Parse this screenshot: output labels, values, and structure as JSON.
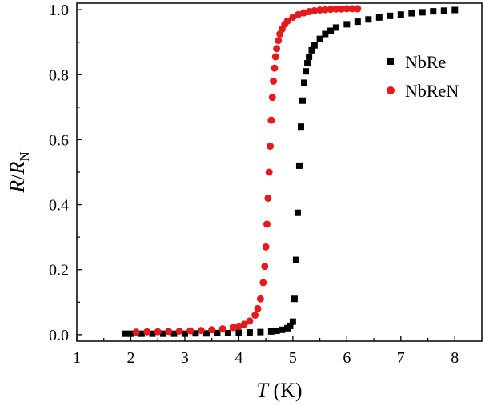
{
  "chart_data": {
    "type": "scatter",
    "xlabel": {
      "var": "T",
      "unit": " (K)"
    },
    "ylabel": {
      "var1": "R",
      "sep": "/",
      "var2": "R",
      "sub": "N"
    },
    "xlim": [
      1,
      8.5
    ],
    "ylim": [
      -0.02,
      1.02
    ],
    "xticks": [
      1,
      2,
      3,
      4,
      5,
      6,
      7,
      8
    ],
    "xtick_labels": [
      "1",
      "2",
      "3",
      "4",
      "5",
      "6",
      "7",
      "8"
    ],
    "yticks": [
      0.0,
      0.2,
      0.4,
      0.6,
      0.8,
      1.0
    ],
    "ytick_labels": [
      "0.0",
      "0.2",
      "0.4",
      "0.6",
      "0.8",
      "1.0"
    ],
    "grid": false,
    "legend_position": "top-right",
    "series": [
      {
        "name": "NbRe",
        "marker": "square",
        "color": "#000000",
        "x": [
          1.9,
          2.0,
          2.2,
          2.4,
          2.6,
          2.8,
          3.0,
          3.2,
          3.4,
          3.6,
          3.8,
          4.0,
          4.2,
          4.4,
          4.6,
          4.7,
          4.8,
          4.9,
          4.95,
          5.0,
          5.03,
          5.06,
          5.09,
          5.12,
          5.15,
          5.18,
          5.21,
          5.24,
          5.27,
          5.3,
          5.35,
          5.4,
          5.5,
          5.6,
          5.7,
          5.8,
          6.0,
          6.2,
          6.4,
          6.6,
          6.8,
          7.0,
          7.2,
          7.4,
          7.6,
          7.8,
          8.0
        ],
        "y": [
          0.003,
          0.003,
          0.003,
          0.003,
          0.003,
          0.003,
          0.003,
          0.004,
          0.004,
          0.005,
          0.005,
          0.006,
          0.007,
          0.008,
          0.01,
          0.012,
          0.015,
          0.02,
          0.027,
          0.04,
          0.11,
          0.23,
          0.375,
          0.52,
          0.64,
          0.72,
          0.775,
          0.81,
          0.835,
          0.855,
          0.875,
          0.89,
          0.91,
          0.925,
          0.935,
          0.945,
          0.955,
          0.963,
          0.97,
          0.976,
          0.981,
          0.985,
          0.989,
          0.992,
          0.995,
          0.997,
          0.999
        ]
      },
      {
        "name": "NbReN",
        "marker": "circle",
        "color": "#e41a1c",
        "x": [
          2.1,
          2.3,
          2.5,
          2.7,
          2.9,
          3.1,
          3.3,
          3.5,
          3.7,
          3.9,
          4.0,
          4.1,
          4.2,
          4.3,
          4.35,
          4.4,
          4.45,
          4.48,
          4.5,
          4.52,
          4.54,
          4.56,
          4.58,
          4.6,
          4.62,
          4.64,
          4.66,
          4.68,
          4.7,
          4.73,
          4.76,
          4.8,
          4.85,
          4.9,
          5.0,
          5.1,
          5.2,
          5.3,
          5.4,
          5.5,
          5.6,
          5.7,
          5.8,
          5.9,
          6.0,
          6.1,
          6.2
        ],
        "y": [
          0.008,
          0.009,
          0.009,
          0.01,
          0.011,
          0.012,
          0.013,
          0.015,
          0.018,
          0.022,
          0.026,
          0.032,
          0.042,
          0.06,
          0.08,
          0.11,
          0.16,
          0.21,
          0.27,
          0.34,
          0.42,
          0.5,
          0.58,
          0.66,
          0.73,
          0.78,
          0.82,
          0.855,
          0.88,
          0.905,
          0.925,
          0.94,
          0.955,
          0.965,
          0.977,
          0.985,
          0.99,
          0.994,
          0.997,
          0.999,
          1.0,
          1.001,
          1.002,
          1.002,
          1.003,
          1.003,
          1.003
        ]
      }
    ]
  }
}
